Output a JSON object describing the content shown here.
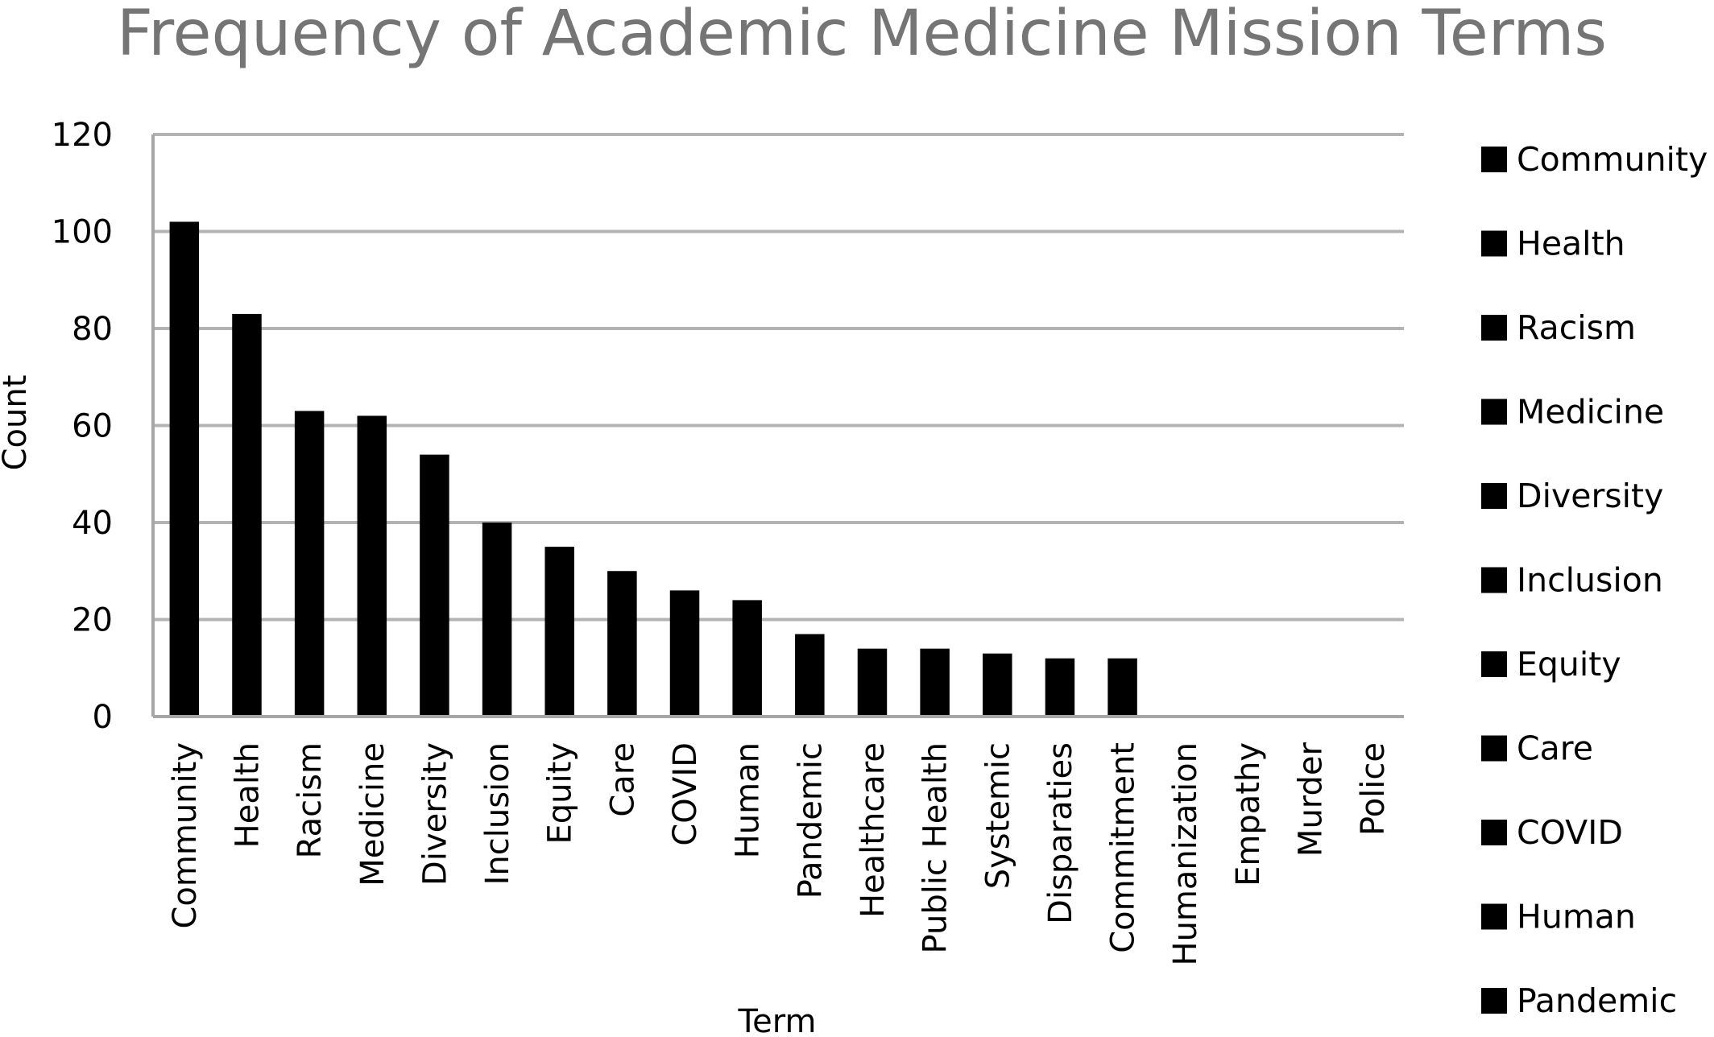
{
  "chart_data": {
    "type": "bar",
    "title": "Frequency of Academic Medicine Mission Terms",
    "xlabel": "Term",
    "ylabel": "Count",
    "ylim": [
      0,
      120
    ],
    "yticks": [
      0,
      20,
      40,
      60,
      80,
      100,
      120
    ],
    "grid": true,
    "legend_position": "right",
    "bar_color": "#000000",
    "gridline_color": "#b3b3b3",
    "title_color": "#757575",
    "categories": [
      "Community",
      "Health",
      "Racism",
      "Medicine",
      "Diversity",
      "Inclusion",
      "Equity",
      "Care",
      "COVID",
      "Human",
      "Pandemic",
      "Healthcare",
      "Public Health",
      "Systemic",
      "Disparaties",
      "Commitment",
      "Humanization",
      "Empathy",
      "Murder",
      "Police"
    ],
    "values": [
      102,
      83,
      63,
      62,
      54,
      40,
      35,
      30,
      26,
      24,
      17,
      14,
      14,
      13,
      12,
      12,
      0,
      0,
      0,
      0
    ],
    "legend_entries": [
      "Community",
      "Health",
      "Racism",
      "Medicine",
      "Diversity",
      "Inclusion",
      "Equity",
      "Care",
      "COVID",
      "Human",
      "Pandemic"
    ]
  }
}
